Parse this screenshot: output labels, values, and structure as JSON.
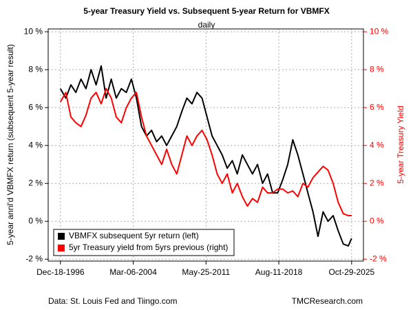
{
  "chart_data": {
    "type": "line",
    "title": "5-year Treasury Yield vs. Subsequent 5-year Return for VBMFX",
    "subtitle": "daily",
    "y_label": "5-year annl'd VBMFX return (subsequent 5-year result)",
    "y2_label": "5-year Treasury Yield",
    "source": "Data: St. Louis Fed and Tiingo.com",
    "credit": "TMCResearch.com",
    "x": [
      "1996-12-18",
      "1997-06-30",
      "1997-12-31",
      "1998-06-30",
      "1998-12-31",
      "1999-06-30",
      "1999-12-31",
      "2000-06-30",
      "2000-12-31",
      "2001-06-30",
      "2001-12-31",
      "2002-06-30",
      "2002-12-31",
      "2003-06-30",
      "2003-12-31",
      "2004-06-30",
      "2004-12-31",
      "2005-06-30",
      "2005-12-31",
      "2006-06-30",
      "2006-12-31",
      "2007-06-30",
      "2007-12-31",
      "2008-06-30",
      "2008-12-31",
      "2009-06-30",
      "2009-12-31",
      "2010-06-30",
      "2010-12-31",
      "2011-06-30",
      "2011-12-31",
      "2012-06-30",
      "2012-12-31",
      "2013-06-30",
      "2013-12-31",
      "2014-06-30",
      "2014-12-31",
      "2015-06-30",
      "2015-12-31",
      "2016-06-30",
      "2016-12-31",
      "2017-06-30",
      "2017-12-31",
      "2018-06-30",
      "2018-12-31",
      "2019-06-30",
      "2019-12-31",
      "2020-06-30",
      "2020-12-31",
      "2021-06-30",
      "2021-12-31",
      "2022-06-30",
      "2022-12-31",
      "2023-06-30",
      "2023-12-31",
      "2024-06-30",
      "2024-12-31",
      "2025-06-30",
      "2025-10-29"
    ],
    "xlim": [
      "1995-10-01",
      "2026-12-31"
    ],
    "xticks": [
      {
        "value": "1996-12-18",
        "label": "Dec-18-1996"
      },
      {
        "value": "2004-03-06",
        "label": "Mar-06-2004"
      },
      {
        "value": "2011-05-25",
        "label": "May-25-2011"
      },
      {
        "value": "2018-08-11",
        "label": "Aug-11-2018"
      },
      {
        "value": "2025-10-29",
        "label": "Oct-29-2025"
      }
    ],
    "ylim": [
      -2.1,
      10.15
    ],
    "yticks": [
      {
        "value": -2,
        "label": "-2 %"
      },
      {
        "value": 0,
        "label": "0 %"
      },
      {
        "value": 2,
        "label": "2 %"
      },
      {
        "value": 4,
        "label": "4 %"
      },
      {
        "value": 6,
        "label": "6 %"
      },
      {
        "value": 8,
        "label": "8 %"
      },
      {
        "value": 10,
        "label": "10 %"
      }
    ],
    "y2lim": [
      -2.1,
      10.15
    ],
    "y2ticks": [
      {
        "value": -2,
        "label": "-2 %"
      },
      {
        "value": 0,
        "label": "0 %"
      },
      {
        "value": 2,
        "label": "2 %"
      },
      {
        "value": 4,
        "label": "4 %"
      },
      {
        "value": 6,
        "label": "6 %"
      },
      {
        "value": 8,
        "label": "8 %"
      },
      {
        "value": 10,
        "label": "10 %"
      }
    ],
    "grid": true,
    "legend": "bottom-left",
    "series": [
      {
        "name": "VBMFX subsequent 5yr return (left)",
        "color": "#000000",
        "axis": "y",
        "values": [
          7.0,
          6.5,
          7.2,
          6.8,
          7.5,
          7.0,
          8.0,
          7.2,
          8.2,
          6.5,
          7.5,
          6.5,
          7.0,
          6.8,
          7.5,
          6.5,
          5.0,
          4.5,
          4.8,
          4.2,
          4.5,
          4.0,
          4.5,
          5.0,
          5.8,
          6.5,
          6.2,
          6.8,
          6.5,
          5.5,
          4.5,
          4.0,
          3.5,
          2.8,
          3.2,
          2.5,
          3.5,
          3.0,
          2.5,
          3.0,
          2.0,
          2.5,
          1.5,
          1.5,
          2.2,
          3.0,
          4.3,
          3.5,
          2.5,
          1.5,
          0.5,
          -0.8,
          0.5,
          0.0,
          0.3,
          -0.5,
          -1.2,
          -1.3,
          -0.9
        ]
      },
      {
        "name": "5yr Treasury yield from 5yrs previous (right)",
        "color": "#ff0000",
        "axis": "y2",
        "values": [
          6.3,
          6.8,
          5.5,
          5.2,
          5.0,
          5.6,
          6.5,
          6.8,
          6.2,
          7.0,
          6.5,
          5.5,
          5.2,
          6.0,
          6.5,
          6.8,
          5.5,
          4.5,
          4.0,
          3.5,
          3.0,
          3.8,
          3.0,
          2.5,
          3.5,
          4.5,
          4.0,
          4.5,
          4.8,
          4.3,
          3.5,
          2.5,
          2.0,
          2.5,
          1.5,
          2.0,
          1.3,
          0.8,
          1.2,
          1.0,
          1.8,
          1.5,
          1.5,
          1.7,
          1.7,
          1.5,
          1.6,
          1.3,
          2.0,
          1.8,
          2.3,
          2.6,
          2.9,
          2.7,
          2.0,
          1.0,
          0.4,
          0.3,
          0.3
        ]
      }
    ]
  }
}
